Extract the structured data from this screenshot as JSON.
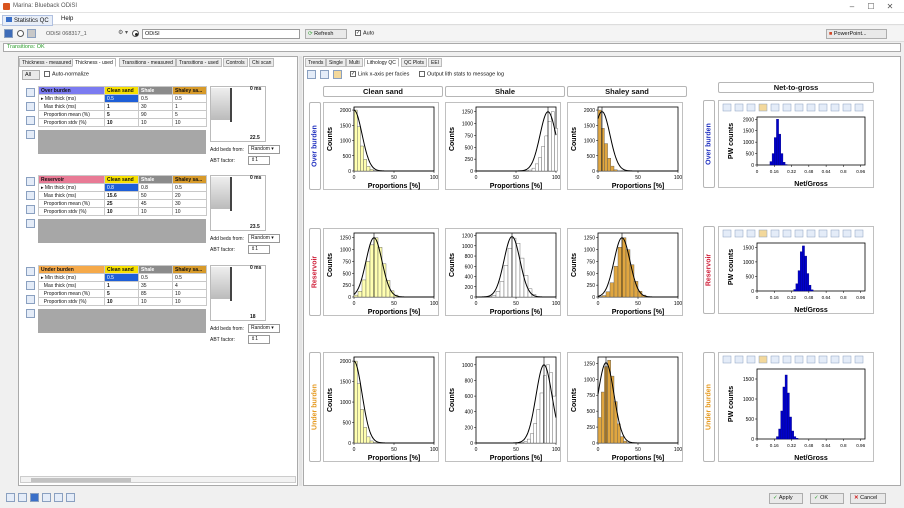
{
  "window": {
    "title": "Marina: Blueback ODiSI",
    "controls": [
      "–",
      "☐",
      "✕"
    ]
  },
  "menu": {
    "tabs": [
      "Statistics QC",
      "Help"
    ]
  },
  "toolbar": {
    "dataset": "ODiSI 068317_1",
    "selected": "ODiSI",
    "refresh": "Refresh",
    "auto": "Auto",
    "powerpoint": "PowerPoint..."
  },
  "status": {
    "text": "Transitions: OK"
  },
  "left": {
    "tabs": [
      "Thickness - measured",
      "Thickness - used",
      "Transitions - measured",
      "Transitions - used",
      "Controls",
      "Chi scan"
    ],
    "active_tab": 1,
    "all_label": "All",
    "auto_normalize": "Auto-normalize",
    "zones": [
      {
        "name": "Over burden",
        "color": "#7b7bf0",
        "cols": [
          "Clean sand",
          "Shale",
          "Shaley sa..."
        ],
        "rows": [
          {
            "label": "Min thick (ms)",
            "v": [
              "0.5",
              "0.5",
              "0.5"
            ]
          },
          {
            "label": "Max thick (ms)",
            "v": [
              "1",
              "30",
              "1"
            ]
          },
          {
            "label": "Proportion mean (%)",
            "v": [
              "5",
              "90",
              "5"
            ]
          },
          {
            "label": "Proportion stdv (%)",
            "v": [
              "10",
              "10",
              "10"
            ]
          }
        ],
        "top": "0 ms",
        "bottom": "22.5",
        "beds_value": "Random",
        "abt_value": "1"
      },
      {
        "name": "Reservoir",
        "color": "#e87a95",
        "cols": [
          "Clean sand",
          "Shale",
          "Shaley sa..."
        ],
        "rows": [
          {
            "label": "Min thick (ms)",
            "v": [
              "0.8",
              "0.8",
              "0.5"
            ]
          },
          {
            "label": "Max thick (ms)",
            "v": [
              "15.6",
              "50",
              "20"
            ]
          },
          {
            "label": "Proportion mean (%)",
            "v": [
              "25",
              "45",
              "30"
            ]
          },
          {
            "label": "Proportion stdv (%)",
            "v": [
              "10",
              "10",
              "10"
            ]
          }
        ],
        "top": "0 ms",
        "bottom": "23.5",
        "beds_value": "Random",
        "abt_value": "1"
      },
      {
        "name": "Under burden",
        "color": "#f5a94a",
        "cols": [
          "Clean sand",
          "Shale",
          "Shaley sa..."
        ],
        "rows": [
          {
            "label": "Min thick (ms)",
            "v": [
              "0.5",
              "0.5",
              "0.5"
            ]
          },
          {
            "label": "Max thick (ms)",
            "v": [
              "1",
              "35",
              "4"
            ]
          },
          {
            "label": "Proportion mean (%)",
            "v": [
              "5",
              "85",
              "10"
            ]
          },
          {
            "label": "Proportion stdv (%)",
            "v": [
              "10",
              "10",
              "10"
            ]
          }
        ],
        "top": "0 ms",
        "bottom": "18",
        "beds_value": "Random",
        "abt_value": "1"
      }
    ],
    "beds_label": "Add beds from:",
    "abt_label": "ABT factor:"
  },
  "right": {
    "tabs": [
      "Trends",
      "Single",
      "Multi",
      "Lithology QC",
      "QC Plots",
      "EEI"
    ],
    "active_tab": 3,
    "link_xaxis": "Link x-axis per facies",
    "output_stats": "Output lith stats to message log",
    "columns": [
      "Clean sand",
      "Shale",
      "Shaley sand"
    ],
    "ntg_title": "Net-to-gross",
    "row_labels": [
      {
        "text": "Over burden",
        "color": "#2030c0"
      },
      {
        "text": "Reservoir",
        "color": "#d0203a"
      },
      {
        "text": "Under burden",
        "color": "#e59a20"
      }
    ],
    "x_label": "Proportions [%]",
    "y_label": "Counts",
    "ntg_x_label": "Net/Gross",
    "ntg_y_label": "PW counts"
  },
  "chart_data": [
    {
      "type": "bar",
      "panel": "Over burden / Clean sand",
      "x_ticks": [
        "0",
        "50",
        "100"
      ],
      "y_ticks": [
        "0",
        "500",
        "1000",
        "1500",
        "2000"
      ],
      "xlim": [
        0,
        100
      ],
      "ylim": [
        0,
        2100
      ],
      "bins": [
        0,
        4,
        8,
        12,
        16,
        20,
        24,
        28
      ],
      "values": [
        2000,
        1450,
        820,
        380,
        150,
        50,
        15,
        5
      ],
      "curve": {
        "mean": 0,
        "std": 10,
        "peak": 2000
      }
    },
    {
      "type": "bar",
      "panel": "Over burden / Shale",
      "x_ticks": [
        "0",
        "50",
        "100"
      ],
      "y_ticks": [
        "0",
        "250",
        "500",
        "750",
        "1000",
        "1250"
      ],
      "xlim": [
        0,
        100
      ],
      "ylim": [
        0,
        1350
      ],
      "bins": [
        66,
        70,
        74,
        78,
        82,
        86,
        90,
        94,
        98
      ],
      "values": [
        20,
        60,
        150,
        280,
        520,
        740,
        1050,
        1250,
        900
      ],
      "curve": {
        "mean": 90,
        "std": 10,
        "peak": 1250
      }
    },
    {
      "type": "bar",
      "panel": "Over burden / Shaley sand",
      "x_ticks": [
        "0",
        "50",
        "100"
      ],
      "y_ticks": [
        "0",
        "500",
        "1000",
        "1500",
        "2000"
      ],
      "xlim": [
        0,
        100
      ],
      "ylim": [
        0,
        2100
      ],
      "bins": [
        0,
        4,
        8,
        12,
        16,
        20,
        24
      ],
      "values": [
        2000,
        1400,
        900,
        420,
        160,
        40,
        10
      ],
      "curve": {
        "mean": 5,
        "std": 10,
        "peak": 1950
      }
    },
    {
      "type": "bar",
      "panel": "Reservoir / Clean sand",
      "x_ticks": [
        "0",
        "50",
        "100"
      ],
      "y_ticks": [
        "0",
        "250",
        "500",
        "750",
        "1000",
        "1250"
      ],
      "xlim": [
        0,
        100
      ],
      "ylim": [
        0,
        1350
      ],
      "bins": [
        0,
        5,
        10,
        15,
        20,
        25,
        30,
        35,
        40,
        45,
        50
      ],
      "values": [
        40,
        120,
        360,
        750,
        1100,
        1250,
        1050,
        700,
        350,
        130,
        40
      ],
      "curve": {
        "mean": 25,
        "std": 10,
        "peak": 1250
      }
    },
    {
      "type": "bar",
      "panel": "Reservoir / Shale",
      "x_ticks": [
        "0",
        "50",
        "100"
      ],
      "y_ticks": [
        "0",
        "200",
        "400",
        "600",
        "800",
        "1000",
        "1200"
      ],
      "xlim": [
        0,
        100
      ],
      "ylim": [
        0,
        1250
      ],
      "bins": [
        20,
        25,
        30,
        35,
        40,
        45,
        50,
        55,
        60,
        65,
        70
      ],
      "values": [
        30,
        110,
        300,
        620,
        950,
        1150,
        1050,
        760,
        420,
        160,
        50
      ],
      "curve": {
        "mean": 45,
        "std": 10,
        "peak": 1180
      }
    },
    {
      "type": "bar",
      "panel": "Reservoir / Shaley sand",
      "x_ticks": [
        "0",
        "50",
        "100"
      ],
      "y_ticks": [
        "0",
        "250",
        "500",
        "750",
        "1000",
        "1250"
      ],
      "xlim": [
        0,
        100
      ],
      "ylim": [
        0,
        1350
      ],
      "bins": [
        5,
        10,
        15,
        20,
        25,
        30,
        35,
        40,
        45,
        50,
        55
      ],
      "values": [
        30,
        110,
        300,
        650,
        1050,
        1250,
        1000,
        680,
        330,
        120,
        40
      ],
      "curve": {
        "mean": 30,
        "std": 10,
        "peak": 1250
      }
    },
    {
      "type": "bar",
      "panel": "Under burden / Clean sand",
      "x_ticks": [
        "0",
        "50",
        "100"
      ],
      "y_ticks": [
        "0",
        "500",
        "1000",
        "1500",
        "2000"
      ],
      "xlim": [
        0,
        100
      ],
      "ylim": [
        0,
        2100
      ],
      "bins": [
        0,
        4,
        8,
        12,
        16,
        20,
        24,
        28
      ],
      "values": [
        2000,
        1450,
        820,
        380,
        150,
        50,
        15,
        5
      ],
      "curve": {
        "mean": 0,
        "std": 10,
        "peak": 2000
      }
    },
    {
      "type": "bar",
      "panel": "Under burden / Shale",
      "x_ticks": [
        "0",
        "50",
        "100"
      ],
      "y_ticks": [
        "0",
        "200",
        "400",
        "600",
        "800",
        "1000"
      ],
      "xlim": [
        0,
        100
      ],
      "ylim": [
        0,
        1100
      ],
      "bins": [
        60,
        64,
        68,
        72,
        76,
        80,
        84,
        88,
        92,
        96
      ],
      "values": [
        20,
        50,
        120,
        250,
        430,
        640,
        860,
        1000,
        900,
        600
      ],
      "curve": {
        "mean": 85,
        "std": 10,
        "peak": 1000
      }
    },
    {
      "type": "bar",
      "panel": "Under burden / Shaley sand",
      "x_ticks": [
        "0",
        "50",
        "100"
      ],
      "y_ticks": [
        "0",
        "250",
        "500",
        "750",
        "1000",
        "1250"
      ],
      "xlim": [
        0,
        100
      ],
      "ylim": [
        0,
        1350
      ],
      "bins": [
        0,
        4,
        8,
        12,
        16,
        20,
        24,
        28,
        32
      ],
      "values": [
        400,
        800,
        1200,
        1300,
        1050,
        650,
        300,
        100,
        30
      ],
      "curve": {
        "mean": 10,
        "std": 10,
        "peak": 1260
      }
    },
    {
      "type": "bar",
      "panel": "Over burden / Net-to-gross",
      "x_ticks": [
        "0",
        "0.16",
        "0.32",
        "0.48",
        "0.64",
        "0.8",
        "0.96"
      ],
      "y_ticks": [
        "0",
        "500",
        "1000",
        "1500",
        "2000"
      ],
      "xlim": [
        0,
        1
      ],
      "ylim": [
        0,
        2100
      ],
      "bins": [
        0.12,
        0.14,
        0.16,
        0.18,
        0.2,
        0.22,
        0.24,
        0.26
      ],
      "values": [
        150,
        500,
        1200,
        2000,
        1350,
        500,
        120,
        20
      ]
    },
    {
      "type": "bar",
      "panel": "Reservoir / Net-to-gross",
      "x_ticks": [
        "0",
        "0.16",
        "0.32",
        "0.48",
        "0.64",
        "0.8",
        "0.96"
      ],
      "y_ticks": [
        "0",
        "500",
        "1000",
        "1500"
      ],
      "xlim": [
        0,
        1
      ],
      "ylim": [
        0,
        1650
      ],
      "bins": [
        0.34,
        0.36,
        0.38,
        0.4,
        0.42,
        0.44,
        0.46,
        0.48,
        0.5
      ],
      "values": [
        50,
        250,
        700,
        1350,
        1550,
        1200,
        600,
        200,
        40
      ]
    },
    {
      "type": "bar",
      "panel": "Under burden / Net-to-gross",
      "x_ticks": [
        "0",
        "0.16",
        "0.32",
        "0.48",
        "0.64",
        "0.8",
        "0.96"
      ],
      "y_ticks": [
        "0",
        "500",
        "1000",
        "1500"
      ],
      "xlim": [
        0,
        1
      ],
      "ylim": [
        0,
        1750
      ],
      "bins": [
        0.18,
        0.2,
        0.22,
        0.24,
        0.26,
        0.28,
        0.3,
        0.32,
        0.34,
        0.36
      ],
      "values": [
        60,
        250,
        700,
        1300,
        1600,
        1150,
        550,
        200,
        60,
        20
      ]
    }
  ],
  "footer": {
    "apply": "Apply",
    "ok": "OK",
    "cancel": "Cancel"
  }
}
